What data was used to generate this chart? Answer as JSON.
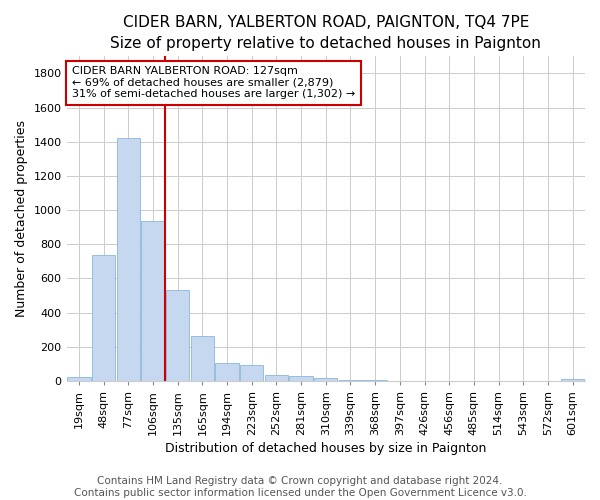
{
  "title": "CIDER BARN, YALBERTON ROAD, PAIGNTON, TQ4 7PE",
  "subtitle": "Size of property relative to detached houses in Paignton",
  "xlabel": "Distribution of detached houses by size in Paignton",
  "ylabel": "Number of detached properties",
  "bar_labels": [
    "19sqm",
    "48sqm",
    "77sqm",
    "106sqm",
    "135sqm",
    "165sqm",
    "194sqm",
    "223sqm",
    "252sqm",
    "281sqm",
    "310sqm",
    "339sqm",
    "368sqm",
    "397sqm",
    "426sqm",
    "456sqm",
    "485sqm",
    "514sqm",
    "543sqm",
    "572sqm",
    "601sqm"
  ],
  "bar_values": [
    22,
    740,
    1420,
    935,
    530,
    265,
    105,
    95,
    38,
    28,
    16,
    5,
    5,
    2,
    2,
    2,
    2,
    2,
    2,
    2,
    14
  ],
  "bar_color": "#c5d8f0",
  "bar_edge_color": "#7aadd6",
  "annotation_text_line1": "CIDER BARN YALBERTON ROAD: 127sqm",
  "annotation_text_line2": "← 69% of detached houses are smaller (2,879)",
  "annotation_text_line3": "31% of semi-detached houses are larger (1,302) →",
  "annotation_box_color": "#cc0000",
  "vline_x_index": 3.5,
  "ylim": [
    0,
    1900
  ],
  "yticks": [
    0,
    200,
    400,
    600,
    800,
    1000,
    1200,
    1400,
    1600,
    1800
  ],
  "footer_line1": "Contains HM Land Registry data © Crown copyright and database right 2024.",
  "footer_line2": "Contains public sector information licensed under the Open Government Licence v3.0.",
  "bg_color": "#ffffff",
  "plot_bg_color": "#ffffff",
  "grid_color": "#cccccc",
  "title_fontsize": 11,
  "subtitle_fontsize": 10,
  "axis_label_fontsize": 9,
  "tick_fontsize": 8,
  "footer_fontsize": 7.5
}
